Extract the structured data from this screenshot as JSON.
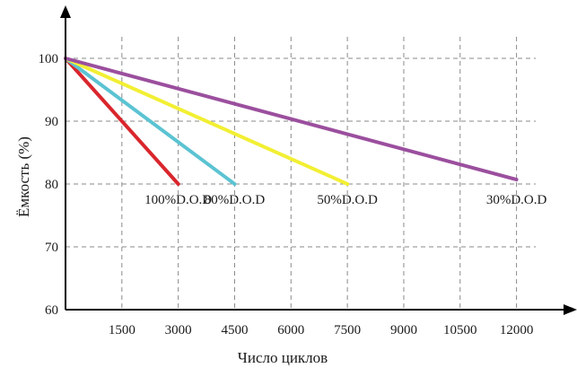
{
  "chart_data": {
    "type": "line",
    "xlabel": "Число циклов",
    "ylabel": "Ёмкость (%)",
    "x_ticks": [
      1500,
      3000,
      4500,
      6000,
      7500,
      9000,
      10500,
      12000
    ],
    "y_ticks": [
      60,
      70,
      80,
      90,
      100
    ],
    "xlim": [
      0,
      12750
    ],
    "ylim": [
      60,
      104
    ],
    "grid": true,
    "series": [
      {
        "name": "100%D.O.D",
        "color": "#d9262c",
        "points": [
          [
            0,
            100
          ],
          [
            3000,
            80
          ]
        ]
      },
      {
        "name": "80%D.O.D",
        "color": "#5bc3d2",
        "points": [
          [
            0,
            100
          ],
          [
            4500,
            80
          ]
        ]
      },
      {
        "name": "50%D.O.D",
        "color": "#f2ef33",
        "points": [
          [
            0,
            100
          ],
          [
            7500,
            80
          ]
        ]
      },
      {
        "name": "30%D.O.D",
        "color": "#9b4f9e",
        "points": [
          [
            0,
            100
          ],
          [
            12000,
            80.7
          ]
        ]
      }
    ]
  }
}
